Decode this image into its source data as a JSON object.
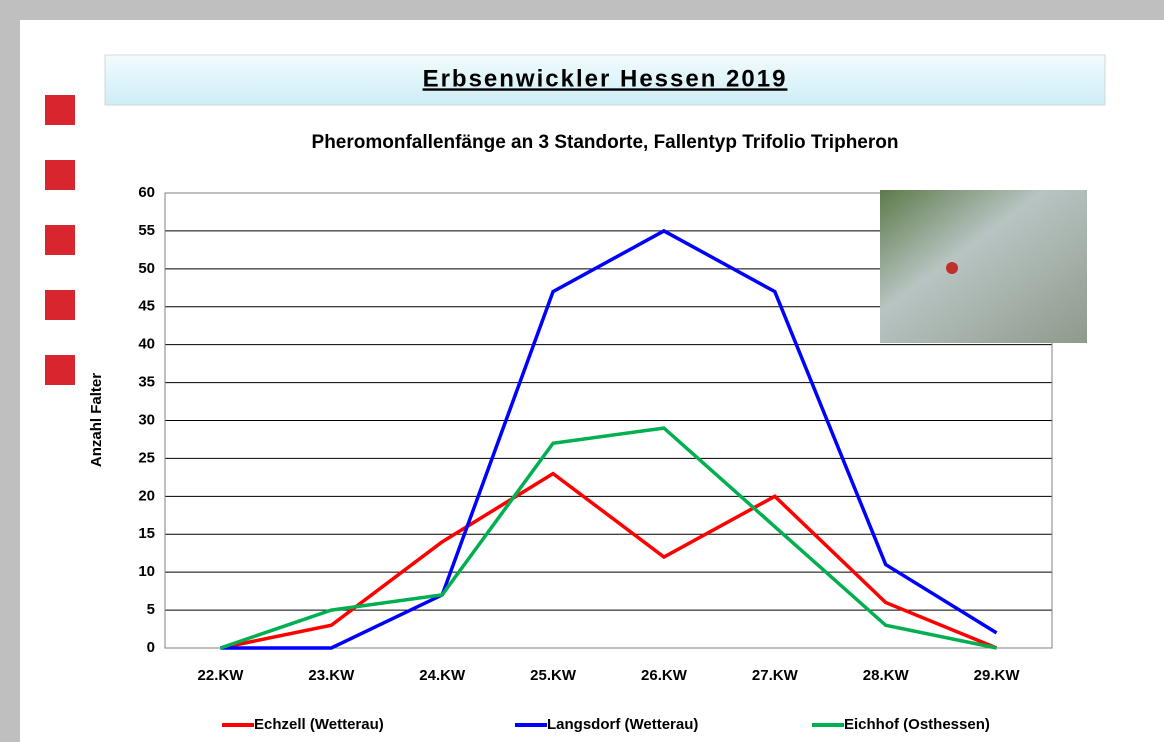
{
  "header": {
    "title": "Erbsenwickler Hessen 2019"
  },
  "chart_data": {
    "type": "line",
    "title": "Pheromonfallenfänge an 3 Standorte, Fallentyp Trifolio Tripheron",
    "y_label": "Anzahl Falter",
    "categories": [
      "22.KW",
      "23.KW",
      "24.KW",
      "25.KW",
      "26.KW",
      "27.KW",
      "28.KW",
      "29.KW"
    ],
    "series": [
      {
        "name": "Echzell (Wetterau)",
        "color": "#ff0000",
        "values": [
          0,
          3,
          14,
          23,
          12,
          20,
          6,
          0
        ]
      },
      {
        "name": "Langsdorf (Wetterau)",
        "color": "#0000ff",
        "values": [
          0,
          0,
          7,
          47,
          55,
          47,
          11,
          2
        ]
      },
      {
        "name": "Eichhof (Osthessen)",
        "color": "#00b050",
        "values": [
          0,
          5,
          7,
          27,
          29,
          16,
          3,
          0
        ]
      }
    ],
    "ylim": [
      0,
      60
    ],
    "yticks": [
      0,
      5,
      10,
      15,
      20,
      25,
      30,
      35,
      40,
      45,
      50,
      55,
      60
    ],
    "grid": true,
    "legend": "bottom"
  }
}
